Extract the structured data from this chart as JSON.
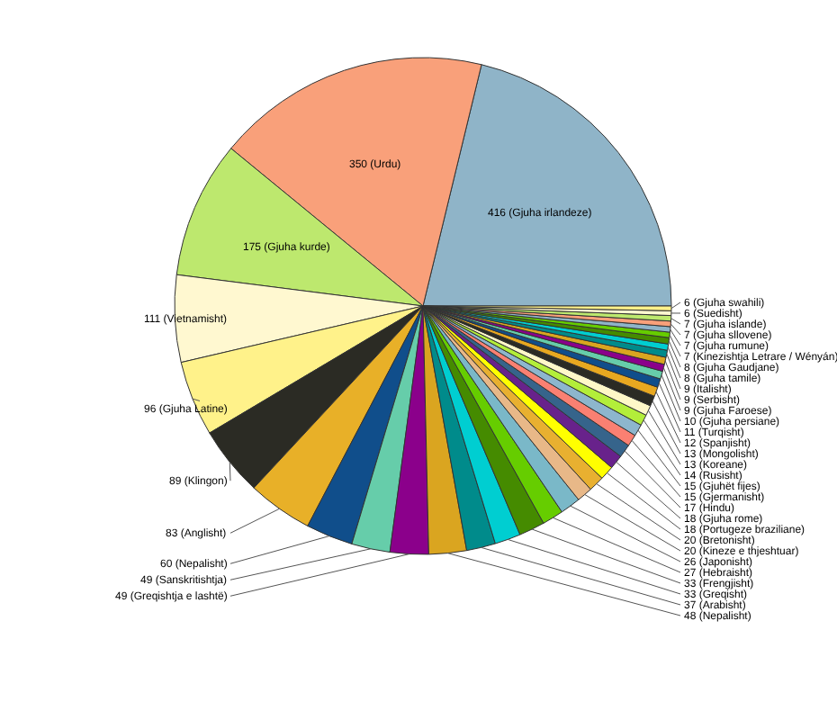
{
  "chart_data": {
    "type": "pie",
    "categories": [
      "416 (Gjuha irlandeze)",
      "350 (Urdu)",
      "175 (Gjuha kurde)",
      "111 (Vietnamisht)",
      "96 (Gjuha Latine)",
      "89 (Klingon)",
      "83 (Anglisht)",
      "60 (Nepalisht)",
      "49 (Sanskritishtja)",
      "49 (Greqishtja e lashtë)",
      "48 (Nepalisht)",
      "37 (Arabisht)",
      "33 (Greqisht)",
      "33 (Frengjisht)",
      "27 (Hebraisht)",
      "26 (Japonisht)",
      "20 (Kineze e thjeshtuar)",
      "20 (Bretonisht)",
      "18 (Portugeze braziliane)",
      "18 (Gjuha rome)",
      "17 (Hindu)",
      "15 (Gjermanisht)",
      "15 (Gjuhët fijes)",
      "14 (Rusisht)",
      "13 (Koreane)",
      "13 (Mongolisht)",
      "12 (Spanjisht)",
      "11 (Turqisht)",
      "10 (Gjuha persiane)",
      "9 (Gjuha Faroese)",
      "9 (Serbisht)",
      "9 (Italisht)",
      "8 (Gjuha tamile)",
      "8 (Gjuha Gaudjane)",
      "7 (Kinezishtja Letrare / Wényán)",
      "7 (Gjuha rumune)",
      "7 (Gjuha sllovene)",
      "7 (Gjuha islande)",
      "6 (Suedisht)",
      "6 (Gjuha swahili)"
    ],
    "values": [
      416,
      350,
      175,
      111,
      96,
      89,
      83,
      60,
      49,
      49,
      48,
      37,
      33,
      33,
      27,
      26,
      20,
      20,
      18,
      18,
      17,
      15,
      15,
      14,
      13,
      13,
      12,
      11,
      10,
      9,
      9,
      9,
      8,
      8,
      7,
      7,
      7,
      7,
      6,
      6
    ],
    "colors": [
      "#8fb4c8",
      "#f9a07a",
      "#bde86e",
      "#fff8d0",
      "#fff28a",
      "#2b2b24",
      "#e8b028",
      "#104e8b",
      "#66cdaa",
      "#8b008b",
      "#daa520",
      "#008b8b",
      "#00ced1",
      "#458b00",
      "#66cd00",
      "#7ab8c8",
      "#e8b888",
      "#e8b030",
      "#ffff00",
      "#68228b",
      "#36648b",
      "#fa8072",
      "#8db6cd",
      "#b3ee3a",
      "#fff8c8",
      "#2b2b24",
      "#e8a820",
      "#104e8b",
      "#66cdaa",
      "#8b008b",
      "#daa520",
      "#008b8b",
      "#00ced1",
      "#458b00",
      "#66cd00",
      "#8fb4c8",
      "#f9a07a",
      "#bde86e",
      "#fff8d0",
      "#fff28a"
    ]
  }
}
